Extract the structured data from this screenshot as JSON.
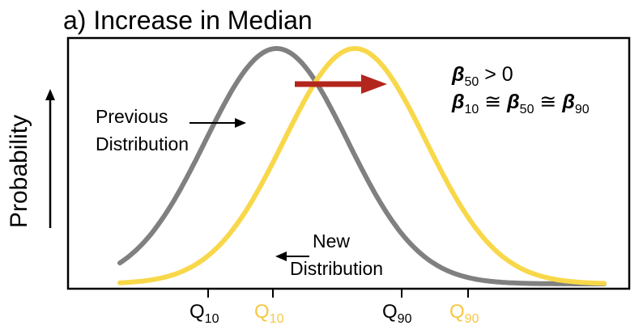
{
  "title": "a) Increase in Median",
  "y_axis_label": "Probability",
  "annotations": {
    "previous": [
      "Previous",
      "Distribution"
    ],
    "new": [
      "New",
      "Distribution"
    ],
    "eq1": {
      "beta": "β",
      "sub": "50",
      "rest": " > 0"
    },
    "eq2": {
      "beta": "β",
      "sub1": "10",
      "sub2": "50",
      "sub3": "90",
      "approx": " ≅ "
    }
  },
  "quantile_labels": {
    "q": "Q",
    "q10": "10",
    "q90": "90"
  },
  "colors": {
    "previous": "#808080",
    "new": "#F8D84A",
    "shift_arrow": "#B3261E",
    "text": "#000000"
  },
  "chart_data": {
    "type": "line",
    "series": [
      {
        "name": "Previous Distribution",
        "mean": 0,
        "sd": 1
      },
      {
        "name": "New Distribution",
        "mean": 1.1,
        "sd": 1
      }
    ],
    "quantiles": {
      "previous": [
        "Q10",
        "Q90"
      ],
      "new": [
        "Q10",
        "Q90"
      ]
    }
  }
}
